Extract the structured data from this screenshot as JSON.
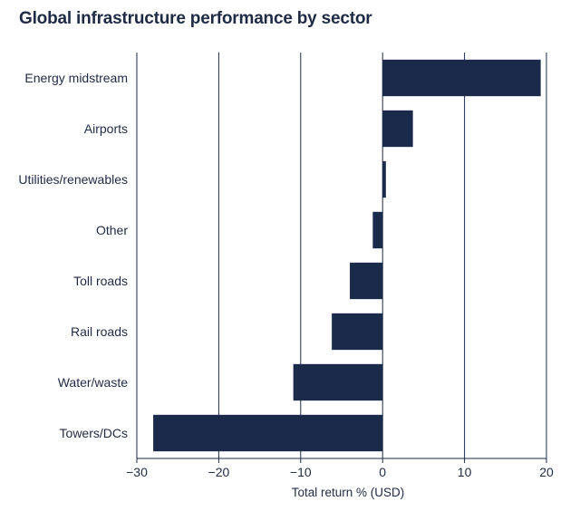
{
  "colors": {
    "bar": "#1b2a4a",
    "grid": "#1b2a4a",
    "text": "#1f2a44"
  },
  "chart_data": {
    "type": "bar",
    "orientation": "horizontal",
    "title": "Global infrastructure performance by sector",
    "xlabel": "Total return % (USD)",
    "ylabel": "",
    "xlim": [
      -30,
      20
    ],
    "xticks": [
      -30,
      -20,
      -10,
      0,
      10,
      20
    ],
    "xtick_labels": [
      "−30",
      "−20",
      "−10",
      "0",
      "10",
      "20"
    ],
    "grid": true,
    "categories": [
      "Energy midstream",
      "Airports",
      "Utilities/renewables",
      "Other",
      "Toll roads",
      "Rail roads",
      "Water/waste",
      "Towers/DCs"
    ],
    "values": [
      19.3,
      3.7,
      0.4,
      -1.2,
      -4.0,
      -6.2,
      -10.9,
      -28.0
    ]
  }
}
